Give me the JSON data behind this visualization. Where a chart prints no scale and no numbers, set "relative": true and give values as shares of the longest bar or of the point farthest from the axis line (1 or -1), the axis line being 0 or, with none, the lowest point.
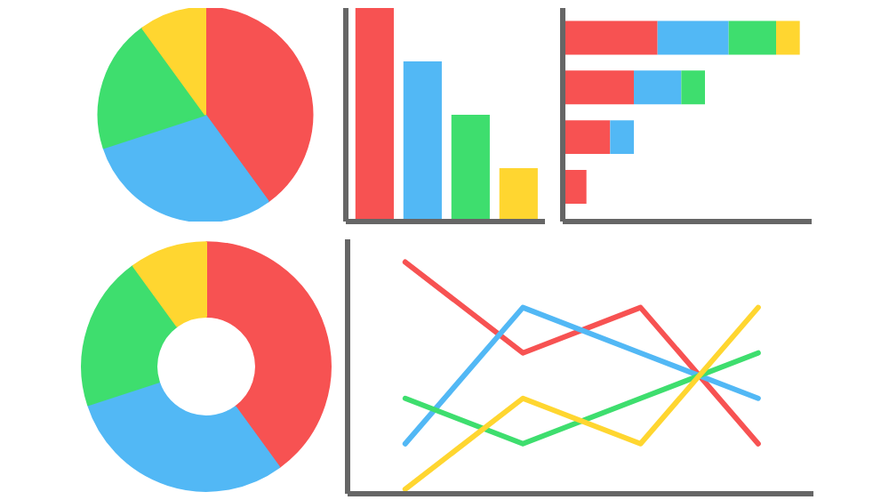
{
  "chart_data": [
    {
      "type": "pie",
      "categories": [
        null,
        null,
        null,
        null
      ],
      "values": [
        40,
        30,
        20,
        10
      ],
      "colors": [
        "#f75252",
        "#52b8f5",
        "#3ede6e",
        "#ffd630"
      ]
    },
    {
      "type": "bar",
      "relative": true,
      "categories": [
        null,
        null,
        null,
        null
      ],
      "values": [
        1.0,
        0.75,
        0.5,
        0.25
      ],
      "colors": [
        "#f75252",
        "#52b8f5",
        "#3ede6e",
        "#ffd630"
      ]
    },
    {
      "type": "bar",
      "relative": true,
      "orientation": "horizontal",
      "stacked": true,
      "categories": [
        null,
        null,
        null,
        null
      ],
      "series": [
        {
          "color": "#f75252",
          "values": [
            0.4,
            0.3,
            0.2,
            0.1
          ]
        },
        {
          "color": "#52b8f5",
          "values": [
            0.3,
            0.2,
            0.1,
            null
          ]
        },
        {
          "color": "#3ede6e",
          "values": [
            0.2,
            0.1,
            null,
            null
          ]
        },
        {
          "color": "#ffd630",
          "values": [
            0.1,
            null,
            null,
            null
          ]
        }
      ]
    },
    {
      "type": "donut",
      "categories": [
        null,
        null,
        null,
        null
      ],
      "values": [
        40,
        30,
        20,
        10
      ],
      "colors": [
        "#f75252",
        "#52b8f5",
        "#3ede6e",
        "#ffd630"
      ]
    },
    {
      "type": "line",
      "relative": true,
      "categories": [
        null,
        null,
        null,
        null
      ],
      "series": [
        {
          "color": "#f75252",
          "values": [
            1.0,
            0.6,
            0.8,
            0.2
          ]
        },
        {
          "color": "#52b8f5",
          "values": [
            0.2,
            0.8,
            0.6,
            0.4
          ]
        },
        {
          "color": "#3ede6e",
          "values": [
            0.4,
            0.2,
            0.4,
            0.6
          ]
        },
        {
          "color": "#ffd630",
          "values": [
            0.0,
            0.4,
            0.2,
            0.8
          ]
        }
      ]
    }
  ]
}
